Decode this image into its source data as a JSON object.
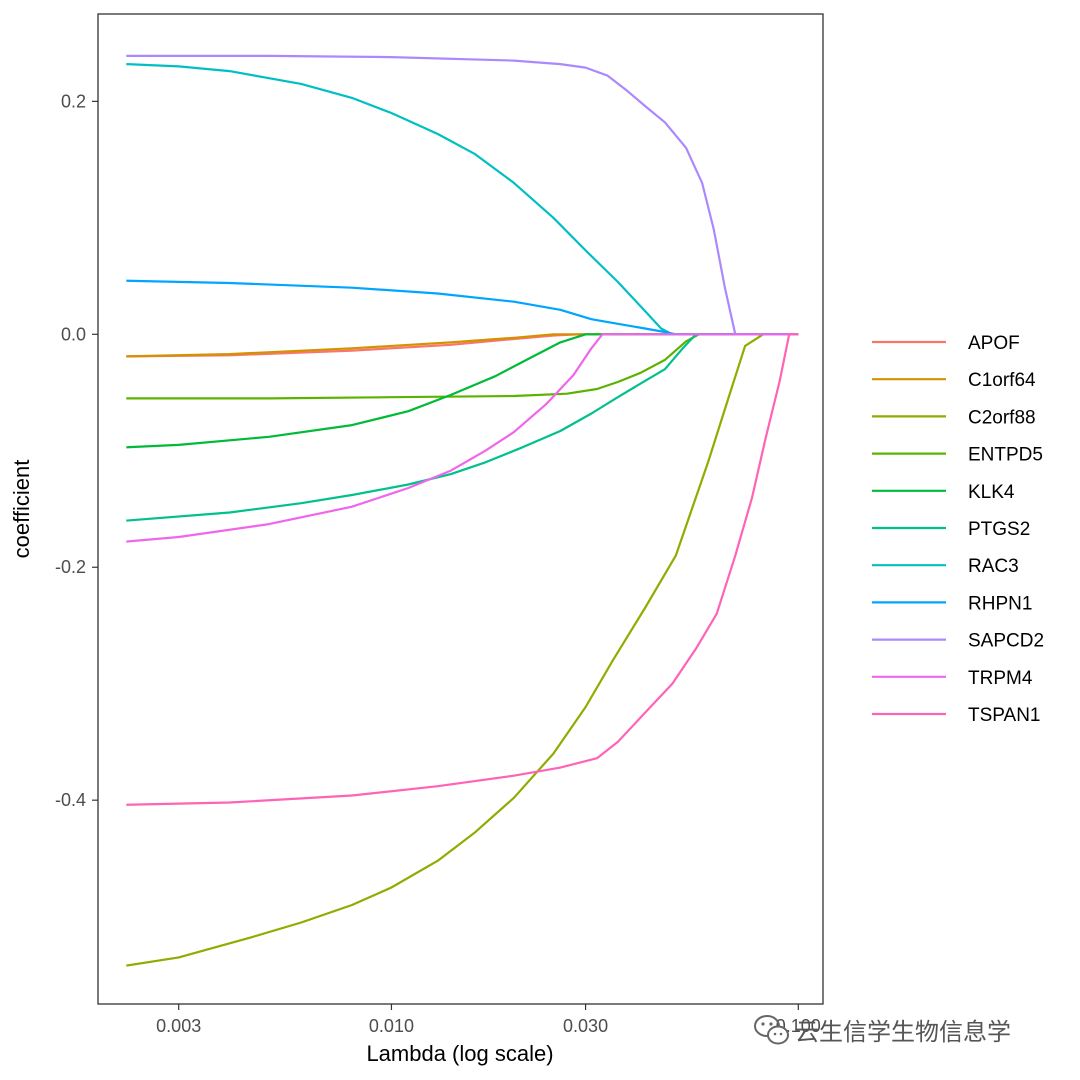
{
  "chart_data": {
    "type": "line",
    "xlabel": "Lambda (log scale)",
    "ylabel": "coefficient",
    "x_scale": "log",
    "xlim": [
      0.0019,
      0.115
    ],
    "ylim": [
      -0.575,
      0.275
    ],
    "x_ticks": [
      {
        "value": 0.003,
        "label": "0.003"
      },
      {
        "value": 0.01,
        "label": "0.010"
      },
      {
        "value": 0.03,
        "label": "0.030"
      },
      {
        "value": 0.1,
        "label": "0.100"
      }
    ],
    "y_ticks": [
      {
        "value": 0.2,
        "label": "0.2"
      },
      {
        "value": 0.0,
        "label": "0.0"
      },
      {
        "value": -0.2,
        "label": "-0.2"
      },
      {
        "value": -0.4,
        "label": "-0.4"
      }
    ],
    "grid": false,
    "legend_position": "right",
    "series": [
      {
        "name": "APOF",
        "color": "#F8766D",
        "x": [
          0.00223,
          0.004,
          0.008,
          0.014,
          0.02,
          0.025,
          0.029,
          0.1
        ],
        "y": [
          -0.019,
          -0.018,
          -0.014,
          -0.009,
          -0.004,
          -0.001,
          0.0,
          0.0
        ]
      },
      {
        "name": "C1orf64",
        "color": "#D39200",
        "x": [
          0.00223,
          0.004,
          0.008,
          0.014,
          0.02,
          0.025,
          0.029,
          0.1
        ],
        "y": [
          -0.019,
          -0.017,
          -0.012,
          -0.007,
          -0.003,
          0.0,
          0.0,
          0.0
        ]
      },
      {
        "name": "C2orf88",
        "color": "#93AA00",
        "x": [
          0.00223,
          0.003,
          0.0045,
          0.006,
          0.008,
          0.01,
          0.013,
          0.016,
          0.02,
          0.025,
          0.03,
          0.035,
          0.042,
          0.05,
          0.06,
          0.068,
          0.074,
          0.082,
          0.1
        ],
        "y": [
          -0.542,
          -0.535,
          -0.518,
          -0.505,
          -0.49,
          -0.475,
          -0.452,
          -0.428,
          -0.398,
          -0.36,
          -0.32,
          -0.28,
          -0.235,
          -0.19,
          -0.11,
          -0.05,
          -0.01,
          0.0,
          0.0
        ]
      },
      {
        "name": "ENTPD5",
        "color": "#5BB300",
        "x": [
          0.00223,
          0.005,
          0.01,
          0.02,
          0.027,
          0.032,
          0.036,
          0.041,
          0.047,
          0.053,
          0.057,
          0.1
        ],
        "y": [
          -0.055,
          -0.055,
          -0.054,
          -0.053,
          -0.051,
          -0.047,
          -0.041,
          -0.033,
          -0.022,
          -0.006,
          0.0,
          0.0
        ]
      },
      {
        "name": "KLK4",
        "color": "#00BA38",
        "x": [
          0.00223,
          0.003,
          0.005,
          0.008,
          0.011,
          0.014,
          0.018,
          0.022,
          0.026,
          0.03,
          0.032,
          0.1
        ],
        "y": [
          -0.097,
          -0.095,
          -0.088,
          -0.078,
          -0.066,
          -0.052,
          -0.036,
          -0.02,
          -0.007,
          0.0,
          0.0,
          0.0
        ]
      },
      {
        "name": "PTGS2",
        "color": "#00C08B",
        "x": [
          0.00223,
          0.004,
          0.006,
          0.008,
          0.011,
          0.014,
          0.017,
          0.021,
          0.026,
          0.031,
          0.036,
          0.042,
          0.047,
          0.052,
          0.056,
          0.1
        ],
        "y": [
          -0.16,
          -0.153,
          -0.145,
          -0.138,
          -0.129,
          -0.12,
          -0.11,
          -0.097,
          -0.083,
          -0.068,
          -0.054,
          -0.04,
          -0.03,
          -0.012,
          0.0,
          0.0
        ]
      },
      {
        "name": "RAC3",
        "color": "#00BFC4",
        "x": [
          0.00223,
          0.003,
          0.004,
          0.006,
          0.008,
          0.01,
          0.013,
          0.016,
          0.02,
          0.025,
          0.03,
          0.036,
          0.042,
          0.046,
          0.049,
          0.1
        ],
        "y": [
          0.232,
          0.23,
          0.226,
          0.215,
          0.203,
          0.19,
          0.172,
          0.155,
          0.13,
          0.1,
          0.072,
          0.045,
          0.02,
          0.005,
          0.0,
          0.0
        ]
      },
      {
        "name": "RHPN1",
        "color": "#00A5FF",
        "x": [
          0.00223,
          0.004,
          0.008,
          0.013,
          0.02,
          0.026,
          0.031,
          0.036,
          0.042,
          0.047,
          0.05,
          0.1
        ],
        "y": [
          0.046,
          0.044,
          0.04,
          0.035,
          0.028,
          0.021,
          0.013,
          0.009,
          0.005,
          0.002,
          0.0,
          0.0
        ]
      },
      {
        "name": "SAPCD2",
        "color": "#AC88FF",
        "x": [
          0.00223,
          0.005,
          0.01,
          0.02,
          0.026,
          0.03,
          0.034,
          0.038,
          0.042,
          0.047,
          0.053,
          0.058,
          0.062,
          0.066,
          0.07,
          0.1
        ],
        "y": [
          0.239,
          0.239,
          0.238,
          0.235,
          0.232,
          0.229,
          0.222,
          0.209,
          0.196,
          0.182,
          0.16,
          0.13,
          0.09,
          0.04,
          0.0,
          0.0
        ]
      },
      {
        "name": "TRPM4",
        "color": "#F066EA",
        "x": [
          0.00223,
          0.003,
          0.005,
          0.008,
          0.011,
          0.014,
          0.017,
          0.02,
          0.024,
          0.028,
          0.031,
          0.033,
          0.1
        ],
        "y": [
          -0.178,
          -0.174,
          -0.163,
          -0.148,
          -0.132,
          -0.117,
          -0.1,
          -0.084,
          -0.06,
          -0.035,
          -0.012,
          0.0,
          0.0
        ]
      },
      {
        "name": "TSPAN1",
        "color": "#FF63B6",
        "x": [
          0.00223,
          0.004,
          0.008,
          0.013,
          0.02,
          0.026,
          0.032,
          0.036,
          0.042,
          0.049,
          0.056,
          0.063,
          0.07,
          0.077,
          0.083,
          0.09,
          0.095,
          0.1
        ],
        "y": [
          -0.404,
          -0.402,
          -0.396,
          -0.388,
          -0.379,
          -0.372,
          -0.364,
          -0.35,
          -0.325,
          -0.3,
          -0.27,
          -0.24,
          -0.19,
          -0.14,
          -0.09,
          -0.04,
          0.0,
          0.0
        ]
      }
    ]
  },
  "watermark": {
    "text": "云生信学生物信息学",
    "icon": "wechat-icon"
  }
}
